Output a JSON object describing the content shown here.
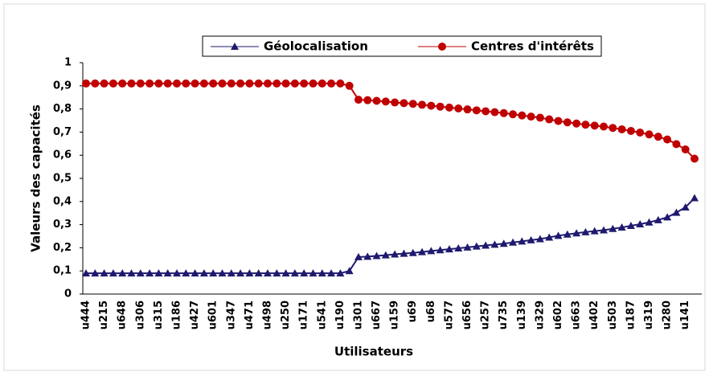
{
  "chart_data": {
    "type": "line",
    "x_label": "Utilisateurs",
    "y_label": "Valeurs des capacités",
    "categories": [
      "u444",
      null,
      "u215",
      null,
      "u648",
      null,
      "u306",
      null,
      "u315",
      null,
      "u186",
      null,
      "u427",
      null,
      "u601",
      null,
      "u347",
      null,
      "u471",
      null,
      "u498",
      null,
      "u250",
      null,
      "u171",
      null,
      "u541",
      null,
      "u190",
      null,
      "u301",
      null,
      "u667",
      null,
      "u159",
      null,
      "u69",
      null,
      "u68",
      null,
      "u577",
      null,
      "u656",
      null,
      "u257",
      null,
      "u735",
      null,
      "u139",
      null,
      "u329",
      null,
      "u602",
      null,
      "u663",
      null,
      "u402",
      null,
      "u503",
      null,
      "u187",
      null,
      "u319",
      null,
      "u280",
      null,
      "u141",
      null
    ],
    "series": [
      {
        "name": "Géolocalisation",
        "color": "#1f1a6e",
        "marker": "triangle",
        "values": [
          0.09,
          0.09,
          0.09,
          0.09,
          0.09,
          0.09,
          0.09,
          0.09,
          0.09,
          0.09,
          0.09,
          0.09,
          0.09,
          0.09,
          0.09,
          0.09,
          0.09,
          0.09,
          0.09,
          0.09,
          0.09,
          0.09,
          0.09,
          0.09,
          0.09,
          0.09,
          0.09,
          0.09,
          0.09,
          0.1,
          0.16,
          0.162,
          0.165,
          0.168,
          0.172,
          0.175,
          0.178,
          0.182,
          0.186,
          0.19,
          0.194,
          0.198,
          0.202,
          0.206,
          0.21,
          0.214,
          0.218,
          0.223,
          0.228,
          0.233,
          0.238,
          0.245,
          0.252,
          0.258,
          0.263,
          0.268,
          0.272,
          0.276,
          0.282,
          0.288,
          0.295,
          0.302,
          0.31,
          0.32,
          0.332,
          0.352,
          0.375,
          0.415
        ]
      },
      {
        "name": "Centres d'intérêts",
        "color": "#c00000",
        "marker": "circle",
        "values": [
          0.91,
          0.91,
          0.91,
          0.91,
          0.91,
          0.91,
          0.91,
          0.91,
          0.91,
          0.91,
          0.91,
          0.91,
          0.91,
          0.91,
          0.91,
          0.91,
          0.91,
          0.91,
          0.91,
          0.91,
          0.91,
          0.91,
          0.91,
          0.91,
          0.91,
          0.91,
          0.91,
          0.91,
          0.91,
          0.9,
          0.84,
          0.838,
          0.835,
          0.832,
          0.828,
          0.825,
          0.822,
          0.818,
          0.814,
          0.81,
          0.806,
          0.802,
          0.798,
          0.794,
          0.79,
          0.786,
          0.782,
          0.777,
          0.772,
          0.767,
          0.762,
          0.755,
          0.748,
          0.742,
          0.737,
          0.732,
          0.728,
          0.724,
          0.718,
          0.712,
          0.705,
          0.698,
          0.69,
          0.68,
          0.668,
          0.648,
          0.625,
          0.585
        ]
      }
    ],
    "ylim": [
      0,
      1
    ],
    "yticks": [
      0,
      {
        "value": 0.1,
        "label": "0,1"
      },
      {
        "value": 0.2,
        "label": "0,2"
      },
      {
        "value": 0.3,
        "label": "0,3"
      },
      {
        "value": 0.4,
        "label": "0,4"
      },
      {
        "value": 0.5,
        "label": "0,5"
      },
      {
        "value": 0.6,
        "label": "0,6"
      },
      {
        "value": 0.7,
        "label": "0,7"
      },
      {
        "value": 0.8,
        "label": "0,8"
      },
      {
        "value": 0.9,
        "label": "0,9"
      },
      1
    ],
    "legend": "top"
  }
}
